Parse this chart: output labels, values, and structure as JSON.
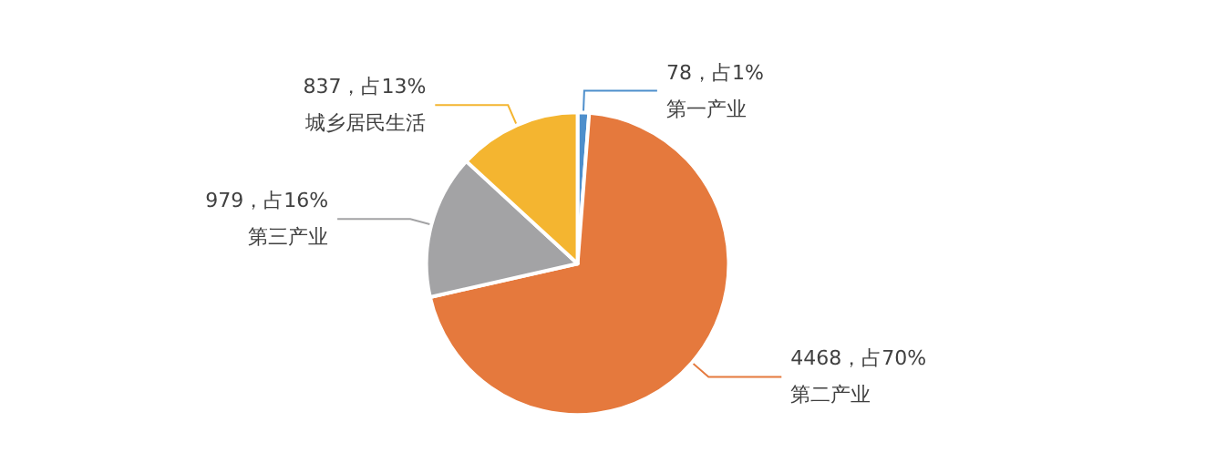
{
  "chart_data": {
    "type": "pie",
    "categories": [
      "第一产业",
      "第二产业",
      "第三产业",
      "城乡居民生活"
    ],
    "values": [
      78,
      4468,
      979,
      837
    ],
    "value_labels": [
      "78，占1%",
      "4468，占70%",
      "979，占16%",
      "837，占13%"
    ],
    "colors": [
      "#4e8fcc",
      "#e5793d",
      "#a3a3a5",
      "#f4b530"
    ],
    "legend": false
  }
}
